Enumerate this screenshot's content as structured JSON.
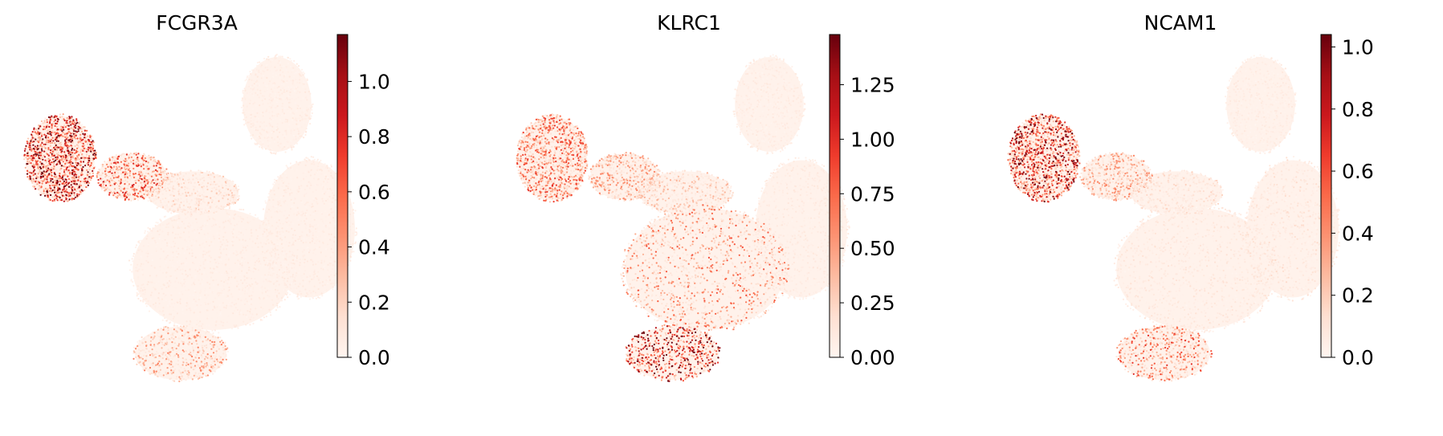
{
  "figure": {
    "colormap": "Reds",
    "colormap_stops": [
      "#fff5f0",
      "#fee0d2",
      "#fcbba1",
      "#fc9272",
      "#fb6a4a",
      "#ef3b2c",
      "#cb181d",
      "#a50f15",
      "#67000d"
    ]
  },
  "chart_data": [
    {
      "type": "scatter",
      "title": "FCGR3A",
      "xlabel": "",
      "ylabel": "",
      "colorbar": {
        "vmin": 0.0,
        "vmax": 1.17,
        "ticks": [
          0.0,
          0.2,
          0.4,
          0.6,
          0.8,
          1.0
        ],
        "tick_labels": [
          "0.0",
          "0.2",
          "0.4",
          "0.6",
          "0.8",
          "1.0"
        ]
      },
      "expression_regions": [
        {
          "region": "left-cluster",
          "level": 0.75
        },
        {
          "region": "left-cluster-extension",
          "level": 0.5
        },
        {
          "region": "middle-bridge",
          "level": 0.15
        },
        {
          "region": "top-lobe",
          "level": 0.04
        },
        {
          "region": "central-body",
          "level": 0.05
        },
        {
          "region": "right-body",
          "level": 0.05
        },
        {
          "region": "bottom-left-lobe",
          "level": 0.3
        }
      ]
    },
    {
      "type": "scatter",
      "title": "KLRC1",
      "xlabel": "",
      "ylabel": "",
      "colorbar": {
        "vmin": 0.0,
        "vmax": 1.48,
        "ticks": [
          0.0,
          0.25,
          0.5,
          0.75,
          1.0,
          1.25
        ],
        "tick_labels": [
          "0.00",
          "0.25",
          "0.50",
          "0.75",
          "1.00",
          "1.25"
        ]
      },
      "expression_regions": [
        {
          "region": "left-cluster",
          "level": 0.45
        },
        {
          "region": "left-cluster-extension",
          "level": 0.3
        },
        {
          "region": "middle-bridge",
          "level": 0.2
        },
        {
          "region": "top-lobe",
          "level": 0.04
        },
        {
          "region": "central-body",
          "level": 0.4
        },
        {
          "region": "right-body",
          "level": 0.06
        },
        {
          "region": "bottom-left-lobe",
          "level": 0.8
        }
      ]
    },
    {
      "type": "scatter",
      "title": "NCAM1",
      "xlabel": "",
      "ylabel": "",
      "colorbar": {
        "vmin": 0.0,
        "vmax": 1.04,
        "ticks": [
          0.0,
          0.2,
          0.4,
          0.6,
          0.8,
          1.0
        ],
        "tick_labels": [
          "0.0",
          "0.2",
          "0.4",
          "0.6",
          "0.8",
          "1.0"
        ]
      },
      "expression_regions": [
        {
          "region": "left-cluster",
          "level": 0.7
        },
        {
          "region": "left-cluster-extension",
          "level": 0.3
        },
        {
          "region": "middle-bridge",
          "level": 0.12
        },
        {
          "region": "top-lobe",
          "level": 0.04
        },
        {
          "region": "central-body",
          "level": 0.08
        },
        {
          "region": "right-body",
          "level": 0.1
        },
        {
          "region": "bottom-left-lobe",
          "level": 0.45
        }
      ]
    }
  ]
}
